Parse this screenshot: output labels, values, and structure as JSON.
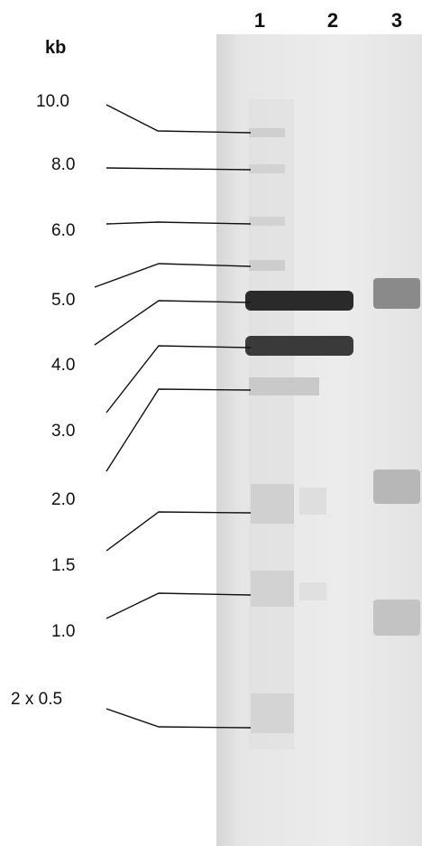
{
  "unit_label": "kb",
  "lanes": [
    {
      "label": "1"
    },
    {
      "label": "2"
    },
    {
      "label": "3"
    }
  ],
  "ladder": [
    {
      "label": "10.0"
    },
    {
      "label": "8.0"
    },
    {
      "label": "6.0"
    },
    {
      "label": "5.0"
    },
    {
      "label": "4.0"
    },
    {
      "label": "3.0"
    },
    {
      "label": "2.0"
    },
    {
      "label": "1.5"
    },
    {
      "label": "1.0"
    },
    {
      "label": "2 x 0.5"
    }
  ],
  "colors": {
    "gel": "#e6e6e6",
    "band_dark": "#1a1a1a",
    "band_faint": "#c8c8c8",
    "text": "#111111"
  }
}
